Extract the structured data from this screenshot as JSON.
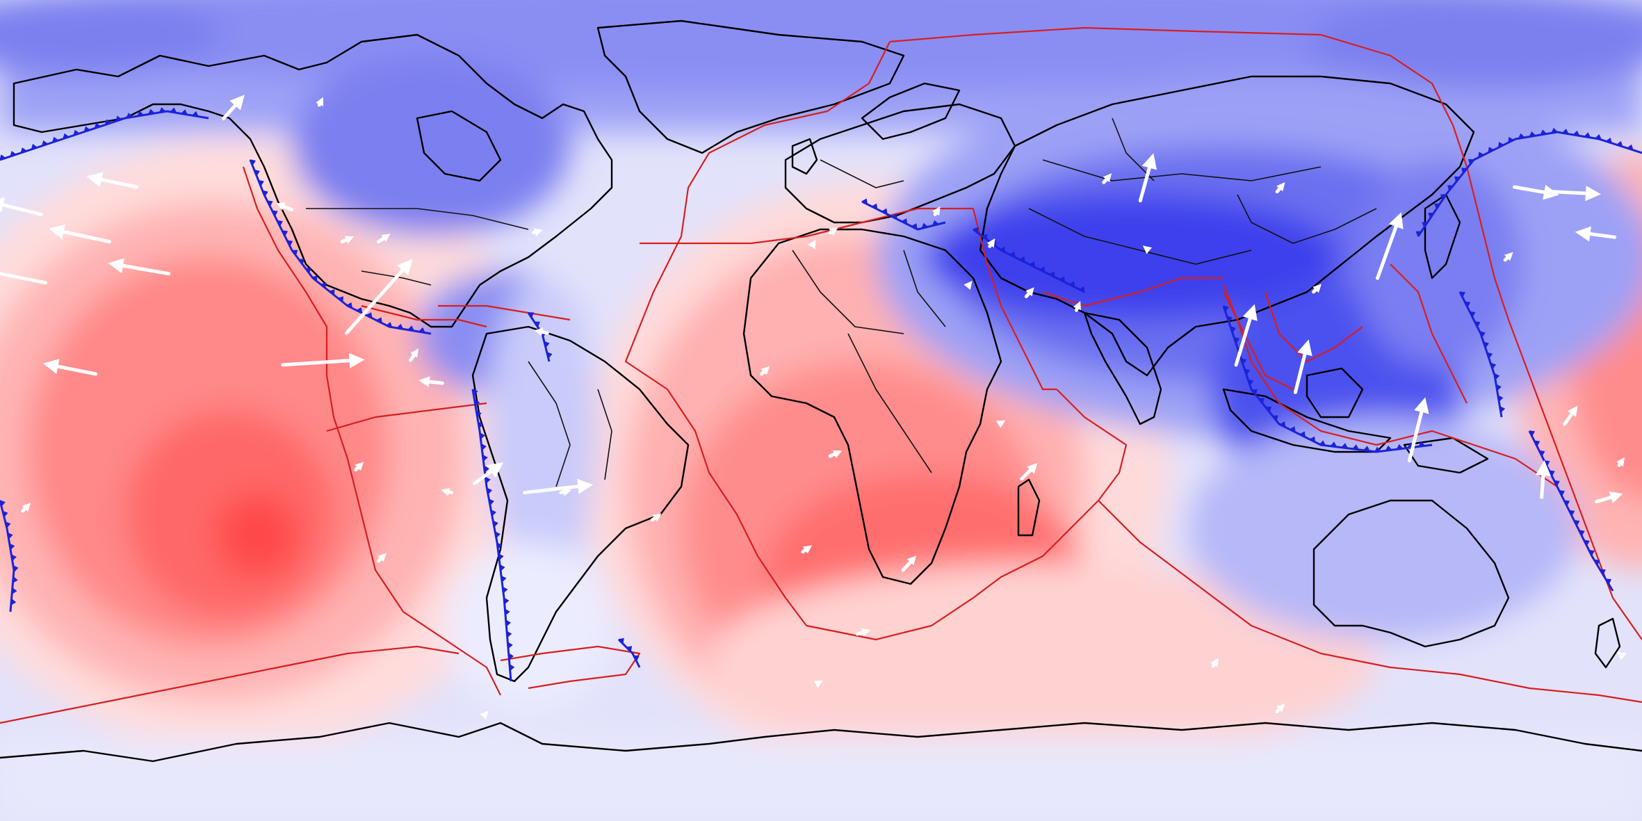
{
  "map": {
    "projection": "equirectangular",
    "lon_range": [
      -180,
      180
    ],
    "lat_range": [
      -90,
      90
    ],
    "field_colormap": {
      "low_color": "#2a2ff2",
      "mid_color": "#ececff",
      "high_color": "#ff4040"
    },
    "coastline_color": "#000000",
    "plate_boundary_color": "#d81e1e",
    "subduction_zone_color": "#1b23d8",
    "velocity_arrow_color": "#ffffff",
    "velocity_arrows": [
      {
        "lon": -171,
        "lat": 43,
        "east": -40,
        "north": 10
      },
      {
        "lon": -150,
        "lat": 49,
        "east": -38,
        "north": 8
      },
      {
        "lon": -156,
        "lat": 37,
        "east": -46,
        "north": 10
      },
      {
        "lon": -170,
        "lat": 28,
        "east": -50,
        "north": 10
      },
      {
        "lon": -143,
        "lat": 30,
        "east": -46,
        "north": 8
      },
      {
        "lon": -159,
        "lat": 8,
        "east": -40,
        "north": 8
      },
      {
        "lon": -131,
        "lat": 64,
        "east": 16,
        "north": 18
      },
      {
        "lon": -118,
        "lat": 10,
        "east": 62,
        "north": 4
      },
      {
        "lon": -116,
        "lat": 44,
        "east": -12,
        "north": 5
      },
      {
        "lon": -105,
        "lat": 37,
        "east": 9,
        "north": 4
      },
      {
        "lon": -110,
        "lat": 67,
        "east": 3,
        "north": 6
      },
      {
        "lon": -104,
        "lat": 17,
        "east": 50,
        "north": 56
      },
      {
        "lon": -97,
        "lat": 37,
        "east": 9,
        "north": 6
      },
      {
        "lon": -63,
        "lat": 39,
        "east": 7,
        "north": 2
      },
      {
        "lon": -90,
        "lat": 11,
        "east": 6,
        "north": 9
      },
      {
        "lon": -83,
        "lat": 6,
        "east": -18,
        "north": 2
      },
      {
        "lon": -60,
        "lat": 17,
        "east": -10,
        "north": 2
      },
      {
        "lon": -65,
        "lat": -18,
        "east": 52,
        "north": 6
      },
      {
        "lon": -76,
        "lat": -16,
        "east": 22,
        "north": 16
      },
      {
        "lon": -81,
        "lat": -18,
        "east": -8,
        "north": 2
      },
      {
        "lon": -97,
        "lat": -33,
        "east": 6,
        "north": 6
      },
      {
        "lon": -102,
        "lat": -13,
        "east": 6,
        "north": 6
      },
      {
        "lon": -74,
        "lat": -67,
        "east": 4,
        "north": 4
      },
      {
        "lon": -13,
        "lat": 8,
        "east": 6,
        "north": 6
      },
      {
        "lon": 2,
        "lat": -10,
        "east": 9,
        "north": 4
      },
      {
        "lon": -57,
        "lat": -18,
        "east": 8,
        "north": 2
      },
      {
        "lon": -37,
        "lat": -24,
        "east": 7,
        "north": 5
      },
      {
        "lon": -4,
        "lat": -31,
        "east": 7,
        "north": 5
      },
      {
        "lon": -1,
        "lat": -60,
        "east": 5,
        "north": 3
      },
      {
        "lon": 2,
        "lat": 39,
        "east": 6,
        "north": 4
      },
      {
        "lon": 18,
        "lat": -35,
        "east": 10,
        "north": 11
      },
      {
        "lon": -2,
        "lat": 36,
        "east": 3,
        "north": 5
      },
      {
        "lon": 25,
        "lat": 43,
        "east": 4,
        "north": 6
      },
      {
        "lon": 32,
        "lat": 27,
        "east": 4,
        "north": 5
      },
      {
        "lon": 37,
        "lat": 36,
        "east": 4,
        "north": 6
      },
      {
        "lon": 39,
        "lat": -3,
        "east": 5,
        "north": 3
      },
      {
        "lon": 44,
        "lat": -15,
        "east": 12,
        "north": 12
      },
      {
        "lon": 45,
        "lat": 25,
        "east": 6,
        "north": 7
      },
      {
        "lon": 62,
        "lat": 50,
        "east": 6,
        "north": 7
      },
      {
        "lon": 72,
        "lat": 35,
        "east": -5,
        "north": 4
      },
      {
        "lon": 70,
        "lat": 46,
        "east": 10,
        "north": 36
      },
      {
        "lon": 56,
        "lat": 22,
        "east": 3,
        "north": 7
      },
      {
        "lon": 91,
        "lat": 10,
        "east": 14,
        "north": 46
      },
      {
        "lon": 100,
        "lat": 48,
        "east": 6,
        "north": 7
      },
      {
        "lon": 104,
        "lat": 4,
        "east": 10,
        "north": 40
      },
      {
        "lon": 108,
        "lat": 26,
        "east": 6,
        "north": 6
      },
      {
        "lon": 122,
        "lat": 29,
        "east": 18,
        "north": 50
      },
      {
        "lon": 129,
        "lat": -11,
        "east": 12,
        "north": 48
      },
      {
        "lon": 150,
        "lat": 33,
        "east": 6,
        "north": 6
      },
      {
        "lon": 152,
        "lat": 49,
        "east": 34,
        "north": -6
      },
      {
        "lon": 160,
        "lat": 48,
        "east": 38,
        "north": -2
      },
      {
        "lon": 174,
        "lat": 38,
        "east": -30,
        "north": 4
      },
      {
        "lon": 158,
        "lat": -19,
        "east": 2,
        "north": 28
      },
      {
        "lon": 170,
        "lat": -20,
        "east": 20,
        "north": 6
      },
      {
        "lon": 163,
        "lat": -3,
        "east": 10,
        "north": 14
      },
      {
        "lon": 175,
        "lat": -12,
        "east": 4,
        "north": 6
      },
      {
        "lon": 8,
        "lat": -49,
        "east": 10,
        "north": 3
      },
      {
        "lon": -175,
        "lat": -22,
        "east": 6,
        "north": 6
      },
      {
        "lon": 100,
        "lat": -66,
        "east": 6,
        "north": 6
      },
      {
        "lon": 86,
        "lat": -56,
        "east": 4,
        "north": 6
      },
      {
        "lon": 176,
        "lat": -54,
        "east": -5,
        "north": 4
      }
    ]
  }
}
